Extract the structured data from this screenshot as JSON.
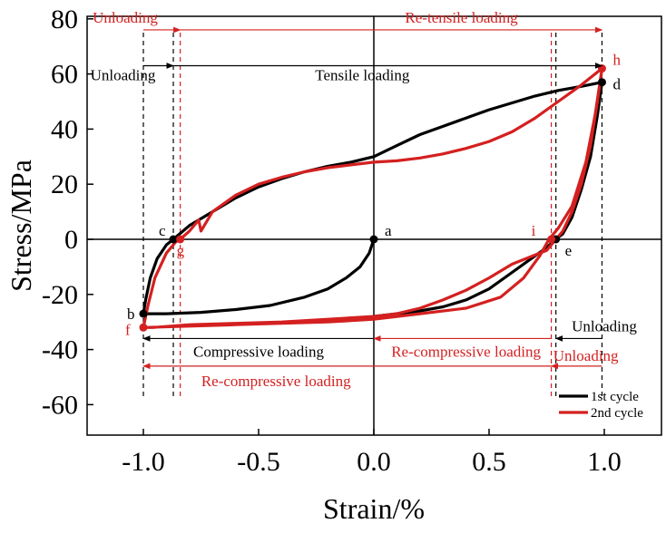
{
  "chart_data": {
    "type": "line",
    "xlabel": "Strain/%",
    "ylabel": "Stress/MPa",
    "xlim": [
      -1.25,
      1.25
    ],
    "ylim": [
      -70,
      80
    ],
    "x_ticks": [
      -1.0,
      -0.5,
      0.0,
      0.5,
      1.0
    ],
    "x_tick_labels": [
      "-1.0",
      "-0.5",
      "0.0",
      "0.5",
      "1.0"
    ],
    "y_ticks": [
      -60,
      -40,
      -20,
      0,
      20,
      40,
      60,
      80
    ],
    "y_tick_labels": [
      "-60",
      "-40",
      "-20",
      "0",
      "20",
      "40",
      "60",
      "80"
    ],
    "grid": false,
    "legend_position": "bottom-right",
    "colors": {
      "cycle1": "#000000",
      "cycle2": "#d42020"
    },
    "series": [
      {
        "name": "1st cycle",
        "color": "#000000",
        "x": [
          0.0,
          -0.02,
          -0.06,
          -0.12,
          -0.2,
          -0.3,
          -0.45,
          -0.6,
          -0.75,
          -0.9,
          -0.97,
          -1.0,
          -0.99,
          -0.97,
          -0.94,
          -0.9,
          -0.87,
          -0.8,
          -0.7,
          -0.6,
          -0.5,
          -0.4,
          -0.3,
          -0.2,
          -0.1,
          0.0,
          0.1,
          0.2,
          0.3,
          0.4,
          0.5,
          0.6,
          0.7,
          0.8,
          0.9,
          0.99,
          0.97,
          0.94,
          0.9,
          0.86,
          0.82,
          0.79,
          0.75,
          0.7,
          0.6,
          0.5,
          0.4,
          0.3,
          0.2,
          0.1,
          0.0
        ],
        "y": [
          0,
          -5,
          -10,
          -14,
          -18,
          -21,
          -24,
          -25.5,
          -26.5,
          -27,
          -27,
          -27,
          -22,
          -14,
          -7,
          -2,
          0,
          5,
          10,
          15,
          19,
          22,
          24.5,
          26.5,
          28,
          30,
          34,
          38,
          41,
          44,
          47,
          49.5,
          52,
          54,
          55.5,
          57,
          45,
          30,
          18,
          8,
          2,
          0,
          -3,
          -6,
          -12,
          -18,
          -22,
          -24.5,
          -26,
          -27,
          -28
        ]
      },
      {
        "name": "2nd cycle",
        "color": "#d42020",
        "x": [
          -1.0,
          -0.8,
          -0.6,
          -0.4,
          -0.2,
          0.0,
          0.2,
          0.4,
          0.55,
          0.65,
          0.72,
          0.76,
          0.8,
          0.86,
          0.92,
          0.96,
          0.99,
          0.97,
          0.94,
          0.9,
          0.86,
          0.82,
          0.79,
          0.77,
          0.75,
          0.72,
          0.6,
          0.5,
          0.4,
          0.3,
          0.2,
          0.1,
          0.0,
          -0.2,
          -0.4,
          -0.6,
          -0.8,
          -0.96,
          -1.0,
          -0.98,
          -0.95,
          -0.9,
          -0.86,
          -0.84,
          -0.8,
          -0.76,
          -0.75,
          -0.7,
          -0.6,
          -0.5,
          -0.4,
          -0.3,
          -0.2,
          -0.1,
          0.0,
          0.1,
          0.2,
          0.3,
          0.4,
          0.5,
          0.6,
          0.7,
          0.8,
          0.9,
          0.96,
          0.99
        ],
        "y": [
          -32,
          -31.5,
          -31,
          -30.5,
          -30,
          -29,
          -27,
          -25,
          -21,
          -14,
          -6,
          0,
          4,
          12,
          28,
          45,
          62,
          50,
          34,
          20,
          10,
          3,
          0,
          -2,
          -4,
          -5,
          -9,
          -14,
          -18.5,
          -22,
          -25,
          -27,
          -28,
          -29,
          -30,
          -30.5,
          -31,
          -32,
          -32,
          -24,
          -14,
          -5,
          -1,
          0,
          3,
          7,
          3,
          10,
          16,
          20,
          22.5,
          24.5,
          26,
          27,
          28,
          28.5,
          29.5,
          31,
          33,
          35.5,
          39,
          44,
          50,
          56,
          60,
          62
        ]
      }
    ],
    "point_labels": [
      {
        "label": "a",
        "x": 0.0,
        "y": 0,
        "series": "1st cycle"
      },
      {
        "label": "b",
        "x": -1.0,
        "y": -27,
        "series": "1st cycle"
      },
      {
        "label": "c",
        "x": -0.87,
        "y": 0,
        "series": "1st cycle"
      },
      {
        "label": "d",
        "x": 0.99,
        "y": 57,
        "series": "1st cycle"
      },
      {
        "label": "e",
        "x": 0.79,
        "y": 0,
        "series": "1st cycle"
      },
      {
        "label": "f",
        "x": -1.0,
        "y": -32,
        "series": "2nd cycle"
      },
      {
        "label": "g",
        "x": -0.84,
        "y": 0,
        "series": "2nd cycle"
      },
      {
        "label": "h",
        "x": 0.99,
        "y": 62,
        "series": "2nd cycle"
      },
      {
        "label": "i",
        "x": 0.77,
        "y": 0,
        "series": "2nd cycle"
      }
    ],
    "annotations": [
      {
        "text": "Unloading",
        "color": "#d42020",
        "y": 76,
        "x_from": -1.0,
        "x_to": -0.84
      },
      {
        "text": "Re-tensile loading",
        "color": "#d42020",
        "y": 76,
        "x_from": -0.84,
        "x_to": 0.99
      },
      {
        "text": "Unloading",
        "color": "#000000",
        "y": 63,
        "x_from": -1.0,
        "x_to": -0.87
      },
      {
        "text": "Tensile loading",
        "color": "#000000",
        "y": 63,
        "x_from": -0.87,
        "x_to": 0.99
      },
      {
        "text": "Compressive loading",
        "color": "#000000",
        "y": -36,
        "x_from": 0.0,
        "x_to": -1.0
      },
      {
        "text": "Re-compressive loading",
        "color": "#d42020",
        "y": -36,
        "x_from": 0.77,
        "x_to": 0.0
      },
      {
        "text": "Unloading",
        "color": "#000000",
        "y": -36,
        "x_from": 0.99,
        "x_to": 0.79
      },
      {
        "text": "Re-compressive loading",
        "color": "#d42020",
        "y": -46,
        "x_from": 0.77,
        "x_to": -1.0
      },
      {
        "text": "Unloading",
        "color": "#d42020",
        "y": -46,
        "x_from": 0.99,
        "x_to": 0.77
      }
    ]
  }
}
